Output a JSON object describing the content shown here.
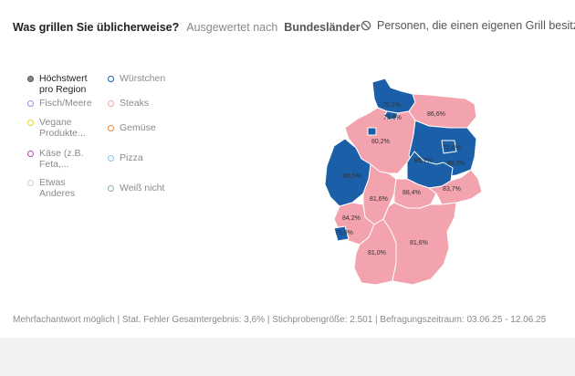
{
  "header": {
    "question": "Was grillen Sie üblicherweise?",
    "evaluated_by": "Ausgewertet nach",
    "region": "Bundesländer",
    "filter_label": "Personen, die einen eigenen Grill besitzen",
    "filter_icon": "filter-circle-icon"
  },
  "legend": [
    {
      "label": "Höchstwert pro Region",
      "color": "#7a7a7a",
      "emphasis": true
    },
    {
      "label": "Würstchen",
      "color": "#1a5fa8"
    },
    {
      "label": "Fisch/Meere",
      "color": "#9b8bd6"
    },
    {
      "label": "Steaks",
      "color": "#f2a3ad"
    },
    {
      "label": "Vegane Produkte...",
      "color": "#e6d33a"
    },
    {
      "label": "Gemüse",
      "color": "#e08a3c"
    },
    {
      "label": "Käse (z.B. Feta,...",
      "color": "#b04aa0"
    },
    {
      "label": "Pizza",
      "color": "#7fc3e8"
    },
    {
      "label": "Etwas Anderes",
      "color": "#cfcfcf"
    },
    {
      "label": "Weiß nicht",
      "color": "#8faaa8"
    }
  ],
  "colors": {
    "wuerstchen": "#1a5fa8",
    "steaks": "#f2a3ad",
    "border": "#ffffff"
  },
  "regions": [
    {
      "name": "Schleswig-Holstein",
      "value": "75,2%",
      "top": "Würstchen"
    },
    {
      "name": "Hamburg",
      "value": "73,6%",
      "top": "Würstchen"
    },
    {
      "name": "Mecklenburg-Vorpommern",
      "value": "86,6%",
      "top": "Steaks"
    },
    {
      "name": "Bremen",
      "value": "",
      "top": "Würstchen"
    },
    {
      "name": "Niedersachsen",
      "value": "80,2%",
      "top": "Steaks"
    },
    {
      "name": "Brandenburg",
      "value": "85,7%",
      "top": "Würstchen"
    },
    {
      "name": "Berlin",
      "value": "72,6%",
      "top": "Würstchen"
    },
    {
      "name": "Sachsen-Anhalt",
      "value": "88,3%",
      "top": "Würstchen"
    },
    {
      "name": "Nordrhein-Westfalen",
      "value": "80,5%",
      "top": "Würstchen"
    },
    {
      "name": "Hessen",
      "value": "81,6%",
      "top": "Steaks"
    },
    {
      "name": "Thüringen",
      "value": "88,4%",
      "top": "Steaks"
    },
    {
      "name": "Sachsen",
      "value": "83,7%",
      "top": "Steaks"
    },
    {
      "name": "Rheinland-Pfalz",
      "value": "84,2%",
      "top": "Steaks"
    },
    {
      "name": "Saarland",
      "value": "75,8%",
      "top": "Würstchen"
    },
    {
      "name": "Baden-Württemberg",
      "value": "81,0%",
      "top": "Steaks"
    },
    {
      "name": "Bayern",
      "value": "81,6%",
      "top": "Steaks"
    }
  ],
  "footer": "Mehrfachantwort möglich | Stat. Fehler Gesamtergebnis: 3,6% | Stichprobengröße: 2.501 | Befragungszeitraum: 03.06.25 - 12.06.25"
}
